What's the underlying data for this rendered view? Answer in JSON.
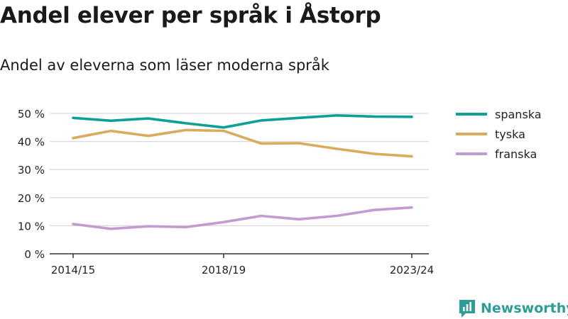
{
  "title": "Andel elever per språk i Åstorp",
  "subtitle": "Andel av eleverna som läser moderna språk",
  "brand": "Newsworthy",
  "colors": {
    "spanska": "#0e9f96",
    "tyska": "#d8ac5c",
    "franska": "#c39bd3",
    "grid": "#d9d9d9",
    "axis": "#333333",
    "brand": "#2d9e95"
  },
  "chart_data": {
    "type": "line",
    "x": [
      "2014/15",
      "2015/16",
      "2016/17",
      "2017/18",
      "2018/19",
      "2019/20",
      "2020/21",
      "2021/22",
      "2022/23",
      "2023/24"
    ],
    "x_tick_labels": [
      "2014/15",
      "2018/19",
      "2023/24"
    ],
    "y_ticks": [
      0,
      10,
      20,
      30,
      40,
      50
    ],
    "y_tick_labels": [
      "0 %",
      "10 %",
      "20 %",
      "30 %",
      "40 %",
      "50 %"
    ],
    "ylim": [
      0,
      50
    ],
    "grid": "horizontal",
    "legend_position": "right",
    "series": [
      {
        "name": "spanska",
        "color": "#0e9f96",
        "values": [
          48.4,
          47.4,
          48.2,
          46.5,
          45.0,
          47.5,
          48.4,
          49.3,
          48.9,
          48.8
        ]
      },
      {
        "name": "tyska",
        "color": "#d8ac5c",
        "values": [
          41.2,
          43.8,
          42.0,
          44.1,
          43.8,
          39.3,
          39.4,
          37.4,
          35.6,
          34.7
        ]
      },
      {
        "name": "franska",
        "color": "#c39bd3",
        "values": [
          10.6,
          8.9,
          9.8,
          9.5,
          11.3,
          13.5,
          12.3,
          13.5,
          15.6,
          16.5
        ]
      }
    ]
  }
}
